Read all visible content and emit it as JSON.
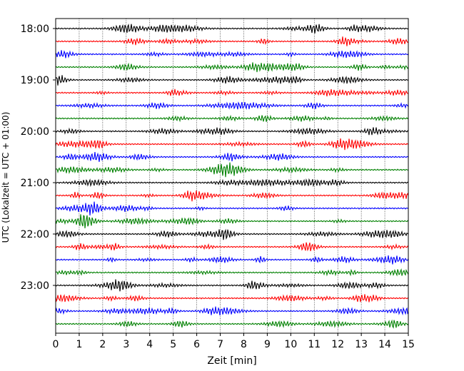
{
  "chart_data": {
    "type": "line",
    "title": "",
    "xlabel": "Zeit  [min]",
    "ylabel": "UTC (Lokalzeit = UTC + 01:00)",
    "xlim": [
      0,
      15
    ],
    "x_ticks": [
      "0",
      "1",
      "2",
      "3",
      "4",
      "5",
      "6",
      "7",
      "8",
      "9",
      "10",
      "11",
      "12",
      "13",
      "14",
      "15"
    ],
    "y_ticks": [
      "18:00",
      "19:00",
      "20:00",
      "21:00",
      "22:00",
      "23:00"
    ],
    "grid": "vertical dotted lines at each minute",
    "trace_interval_minutes": 15,
    "start_time": "18:00",
    "trace_count": 24,
    "colors": [
      "#000000",
      "#ff0000",
      "#0000ff",
      "#008000"
    ]
  }
}
